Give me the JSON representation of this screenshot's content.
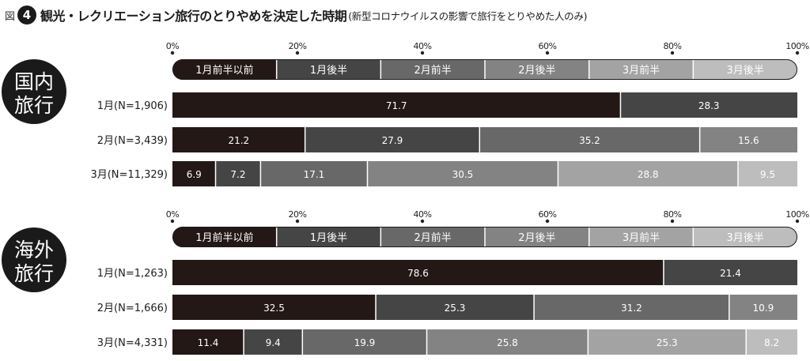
{
  "figure": {
    "label": "図",
    "number": "4",
    "title": "観光・レクリエーション旅行のとりやめを決定した時期",
    "subtitle": "(新型コロナウイルスの影響で旅行をとりやめた人のみ)"
  },
  "colors": {
    "segments": [
      "#231816",
      "#454545",
      "#686868",
      "#838383",
      "#a3a3a3",
      "#bdbdbd"
    ],
    "labels_light": "#ffffff",
    "labels_dark": "#1c1c1c"
  },
  "chart_data": [
    {
      "type": "bar",
      "orientation": "horizontal",
      "stacked": true,
      "group_label": "国内旅行",
      "ticks": [
        "0%",
        "20%",
        "40%",
        "60%",
        "80%",
        "100%"
      ],
      "legend_entries": [
        "1月前半以前",
        "1月後半",
        "2月前半",
        "2月後半",
        "3月前半",
        "3月後半"
      ],
      "legend_placement": "top",
      "xlim": [
        0,
        100
      ],
      "rows": [
        {
          "label": "1月(N=1,906)",
          "values": [
            71.7,
            28.3
          ],
          "series_index": [
            0,
            1
          ]
        },
        {
          "label": "2月(N=3,439)",
          "values": [
            21.2,
            27.9,
            35.2,
            15.6
          ],
          "series_index": [
            0,
            1,
            2,
            3
          ]
        },
        {
          "label": "3月(N=11,329)",
          "values": [
            6.9,
            7.2,
            17.1,
            30.5,
            28.8,
            9.5
          ],
          "series_index": [
            0,
            1,
            2,
            3,
            4,
            5
          ]
        }
      ]
    },
    {
      "type": "bar",
      "orientation": "horizontal",
      "stacked": true,
      "group_label": "海外旅行",
      "ticks": [
        "0%",
        "20%",
        "40%",
        "60%",
        "80%",
        "100%"
      ],
      "legend_entries": [
        "1月前半以前",
        "1月後半",
        "2月前半",
        "2月後半",
        "3月前半",
        "3月後半"
      ],
      "legend_placement": "top",
      "xlim": [
        0,
        100
      ],
      "rows": [
        {
          "label": "1月(N=1,263)",
          "values": [
            78.6,
            21.4
          ],
          "series_index": [
            0,
            1
          ]
        },
        {
          "label": "2月(N=1,666)",
          "values": [
            32.5,
            25.3,
            31.2,
            10.9
          ],
          "series_index": [
            0,
            1,
            2,
            3
          ]
        },
        {
          "label": "3月(N=4,331)",
          "values": [
            11.4,
            9.4,
            19.9,
            25.8,
            25.3,
            8.2
          ],
          "series_index": [
            0,
            1,
            2,
            3,
            4,
            5
          ]
        }
      ]
    }
  ]
}
